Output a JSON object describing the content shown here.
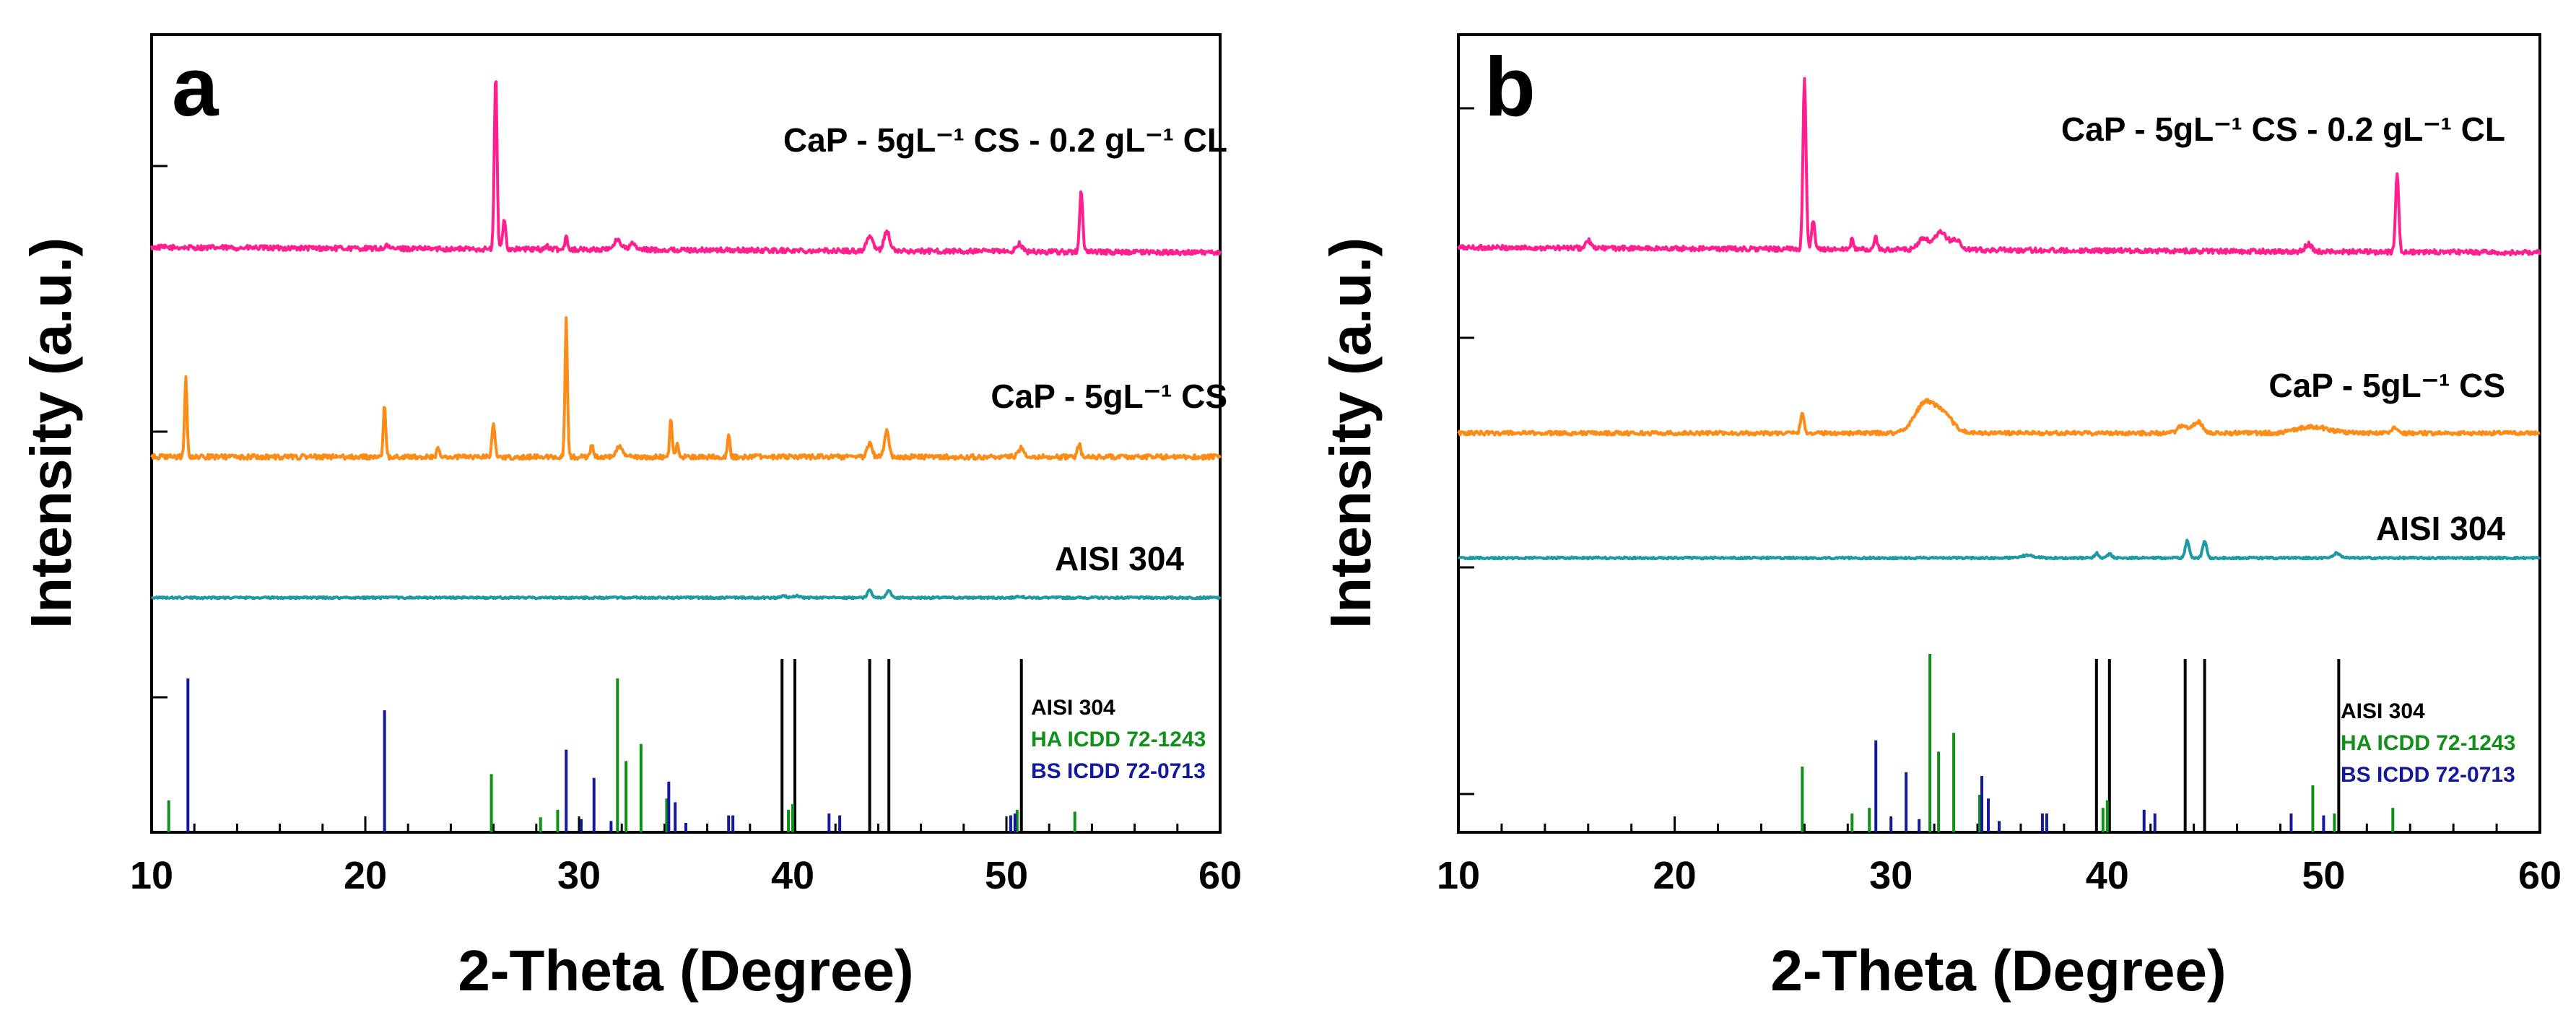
{
  "chart_data": [
    {
      "type": "line",
      "panel_label": "a",
      "xlabel": "2-Theta (Degree)",
      "ylabel": "Intensity (a.u.)",
      "xlim": [
        10,
        60
      ],
      "x_ticks": [
        "10",
        "20",
        "30",
        "40",
        "50",
        "60"
      ],
      "series": [
        {
          "name": "CaP - 5gL⁻¹ CS - 0.2 gL⁻¹ CL",
          "color": "#ff1f8e",
          "baseline": 0.09,
          "peaks": [
            [
              21.0,
              0.02,
              0.08
            ],
            [
              26.1,
              0.9,
              0.09
            ],
            [
              26.5,
              0.15,
              0.1
            ],
            [
              28.5,
              0.02,
              0.1
            ],
            [
              29.4,
              0.08,
              0.08
            ],
            [
              31.8,
              0.05,
              0.25
            ],
            [
              32.5,
              0.03,
              0.2
            ],
            [
              43.6,
              0.08,
              0.2
            ],
            [
              44.4,
              0.1,
              0.2
            ],
            [
              50.6,
              0.04,
              0.2
            ],
            [
              53.5,
              0.32,
              0.1
            ]
          ]
        },
        {
          "name": "CaP - 5gL⁻¹ CS",
          "color": "#fb8c17",
          "baseline": 0.0,
          "peaks": [
            [
              11.6,
              0.42,
              0.08
            ],
            [
              20.9,
              0.27,
              0.08
            ],
            [
              23.4,
              0.05,
              0.08
            ],
            [
              26.0,
              0.17,
              0.1
            ],
            [
              29.4,
              0.73,
              0.08
            ],
            [
              30.6,
              0.06,
              0.1
            ],
            [
              31.9,
              0.05,
              0.25
            ],
            [
              34.3,
              0.2,
              0.08
            ],
            [
              34.6,
              0.06,
              0.08
            ],
            [
              37.0,
              0.12,
              0.08
            ],
            [
              43.6,
              0.08,
              0.15
            ],
            [
              44.4,
              0.14,
              0.15
            ],
            [
              50.7,
              0.05,
              0.2
            ],
            [
              53.4,
              0.07,
              0.1
            ]
          ]
        },
        {
          "name": "AISI 304",
          "color": "#1f9aa3",
          "baseline": 0.0,
          "peaks": [
            [
              39.6,
              0.02,
              0.15
            ],
            [
              40.2,
              0.02,
              0.2
            ],
            [
              43.6,
              0.09,
              0.15
            ],
            [
              44.5,
              0.09,
              0.15
            ],
            [
              50.6,
              0.02,
              0.2
            ]
          ]
        }
      ],
      "reference_patterns": [
        {
          "name": "AISI 304",
          "color": "#000000",
          "lines": [
            [
              39.5,
              0.8
            ],
            [
              40.1,
              0.8
            ],
            [
              43.6,
              0.8
            ],
            [
              44.5,
              0.8
            ],
            [
              50.7,
              0.8
            ]
          ]
        },
        {
          "name": "HA  ICDD 72-1243",
          "color": "#128f1a",
          "lines": [
            [
              10.8,
              0.17
            ],
            [
              25.9,
              0.31
            ],
            [
              28.2,
              0.08
            ],
            [
              29.0,
              0.12
            ],
            [
              31.8,
              0.82
            ],
            [
              32.2,
              0.38
            ],
            [
              32.9,
              0.47
            ],
            [
              34.1,
              0.18
            ],
            [
              39.8,
              0.12
            ],
            [
              40.0,
              0.15
            ],
            [
              50.5,
              0.12
            ],
            [
              53.2,
              0.11
            ]
          ]
        },
        {
          "name": "BS  ICDD 72-0713",
          "color": "#14199a",
          "lines": [
            [
              11.7,
              0.82
            ],
            [
              20.9,
              0.65
            ],
            [
              29.4,
              0.44
            ],
            [
              30.1,
              0.07
            ],
            [
              30.7,
              0.29
            ],
            [
              31.5,
              0.06
            ],
            [
              34.2,
              0.27
            ],
            [
              34.5,
              0.16
            ],
            [
              35.0,
              0.05
            ],
            [
              37.0,
              0.09
            ],
            [
              37.2,
              0.09
            ],
            [
              41.7,
              0.1
            ],
            [
              42.2,
              0.09
            ],
            [
              50.2,
              0.09
            ],
            [
              50.4,
              0.1
            ]
          ]
        }
      ]
    },
    {
      "type": "line",
      "panel_label": "b",
      "xlabel": "2-Theta (Degree)",
      "ylabel": "Intensity (a.u.)",
      "xlim": [
        10,
        60
      ],
      "x_ticks": [
        "10",
        "20",
        "30",
        "40",
        "50",
        "60"
      ],
      "series": [
        {
          "name": "CaP - 5gL⁻¹ CS - 0.2 gL⁻¹ CL",
          "color": "#ff1f8e",
          "baseline": 0.09,
          "peaks": [
            [
              16.0,
              0.04,
              0.15
            ],
            [
              26.0,
              0.9,
              0.1
            ],
            [
              26.4,
              0.15,
              0.1
            ],
            [
              28.2,
              0.05,
              0.1
            ],
            [
              29.3,
              0.06,
              0.1
            ],
            [
              31.5,
              0.06,
              0.3
            ],
            [
              32.3,
              0.09,
              0.4
            ],
            [
              33.0,
              0.05,
              0.3
            ],
            [
              49.3,
              0.04,
              0.2
            ],
            [
              53.4,
              0.42,
              0.1
            ]
          ]
        },
        {
          "name": "CaP - 5gL⁻¹ CS",
          "color": "#fb8c17",
          "baseline": 0.0,
          "peaks": [
            [
              25.9,
              0.12,
              0.12
            ],
            [
              31.6,
              0.19,
              0.7
            ],
            [
              32.5,
              0.09,
              0.6
            ],
            [
              43.5,
              0.05,
              0.3
            ],
            [
              44.2,
              0.07,
              0.3
            ],
            [
              49.5,
              0.04,
              1.0
            ],
            [
              53.3,
              0.03,
              0.2
            ]
          ]
        },
        {
          "name": "AISI 304",
          "color": "#1f9aa3",
          "baseline": 0.0,
          "peaks": [
            [
              36.3,
              0.03,
              0.5
            ],
            [
              39.5,
              0.06,
              0.12
            ],
            [
              40.1,
              0.05,
              0.15
            ],
            [
              43.7,
              0.22,
              0.13
            ],
            [
              44.5,
              0.21,
              0.13
            ],
            [
              50.6,
              0.06,
              0.2
            ]
          ]
        }
      ],
      "reference_patterns": [
        {
          "name": "AISI 304",
          "color": "#000000",
          "lines": [
            [
              39.5,
              0.8
            ],
            [
              40.1,
              0.8
            ],
            [
              43.6,
              0.8
            ],
            [
              44.5,
              0.8
            ],
            [
              50.7,
              0.8
            ]
          ]
        },
        {
          "name": "HA  ICDD 72-1243",
          "color": "#128f1a",
          "lines": [
            [
              25.9,
              0.35
            ],
            [
              28.2,
              0.1
            ],
            [
              29.0,
              0.13
            ],
            [
              31.8,
              0.95
            ],
            [
              32.2,
              0.43
            ],
            [
              32.9,
              0.53
            ],
            [
              34.1,
              0.2
            ],
            [
              39.8,
              0.13
            ],
            [
              40.0,
              0.17
            ],
            [
              49.5,
              0.25
            ],
            [
              50.5,
              0.1
            ],
            [
              53.2,
              0.13
            ]
          ]
        },
        {
          "name": "BS  ICDD 72-0713",
          "color": "#14199a",
          "lines": [
            [
              29.3,
              0.49
            ],
            [
              30.0,
              0.08
            ],
            [
              30.7,
              0.32
            ],
            [
              31.3,
              0.07
            ],
            [
              34.2,
              0.3
            ],
            [
              34.5,
              0.18
            ],
            [
              35.0,
              0.06
            ],
            [
              37.0,
              0.1
            ],
            [
              37.2,
              0.1
            ],
            [
              41.7,
              0.12
            ],
            [
              42.2,
              0.1
            ],
            [
              48.5,
              0.1
            ],
            [
              50.0,
              0.09
            ]
          ]
        }
      ]
    }
  ]
}
